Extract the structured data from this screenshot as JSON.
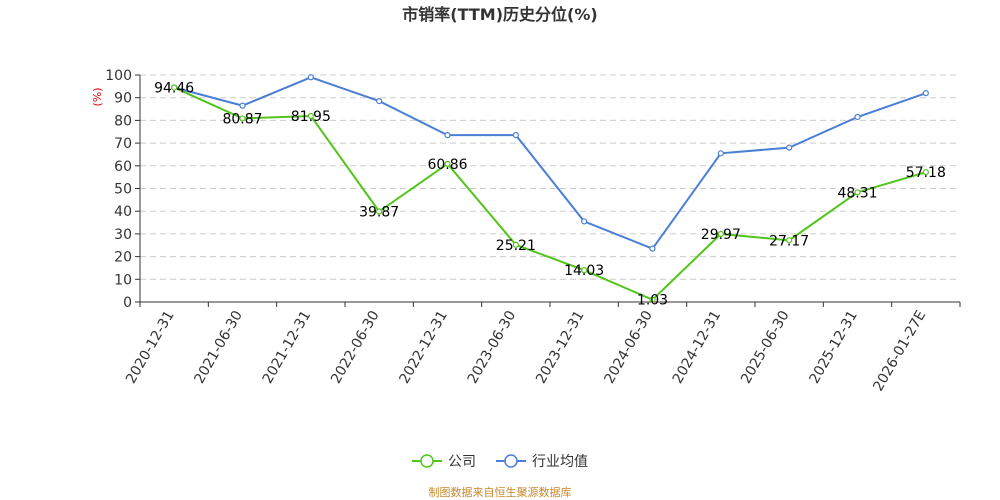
{
  "chart_data": {
    "type": "line",
    "title": "市销率(TTM)历史分位(%)",
    "ylabel": "(%)",
    "ylim": [
      0,
      100
    ],
    "yticks": [
      0,
      10,
      20,
      30,
      40,
      50,
      60,
      70,
      80,
      90,
      100
    ],
    "grid": true,
    "legend_position": "bottom",
    "categories": [
      "2020-12-31",
      "2021-06-30",
      "2021-12-31",
      "2022-06-30",
      "2022-12-31",
      "2023-06-30",
      "2023-12-31",
      "2024-06-30",
      "2024-12-31",
      "2025-06-30",
      "2025-12-31",
      "2026-01-27E"
    ],
    "series": [
      {
        "name": "公司",
        "color": "#52c41a",
        "values": [
          94.46,
          80.87,
          81.95,
          39.87,
          60.86,
          25.21,
          14.03,
          1.03,
          29.97,
          27.17,
          48.31,
          57.18
        ],
        "labels": [
          "94.46",
          "80.87",
          "81.95",
          "39.87",
          "60.86",
          "25.21",
          "14.03",
          "1.03",
          "29.97",
          "27.17",
          "48.31",
          "57.18"
        ]
      },
      {
        "name": "行业均值",
        "color": "#4a7fd6",
        "values": [
          94.5,
          86.5,
          99,
          88.5,
          73.5,
          73.5,
          35.5,
          23.5,
          65.5,
          68,
          81.5,
          92
        ],
        "labels": []
      }
    ],
    "source": "制图数据来自恒生聚源数据库"
  }
}
